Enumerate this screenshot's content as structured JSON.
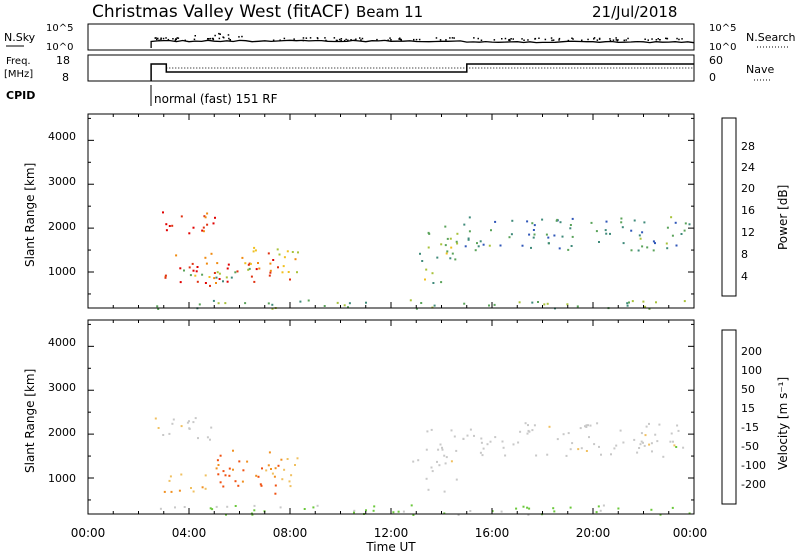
{
  "header": {
    "title": "Christmas Valley West (fitACF)",
    "beam": "Beam 11",
    "date": "21/Jul/2018"
  },
  "top_panels": {
    "nsky": {
      "label": "N.Sky",
      "ticks": [
        "10^5",
        "10^0"
      ],
      "right_label": "N.Search",
      "right_ticks": [
        "10^5",
        "10^0"
      ]
    },
    "freq": {
      "label_line1": "Freq.",
      "label_line2": "[MHz]",
      "ticks": [
        "18",
        "8"
      ],
      "right_label": "Nave",
      "right_ticks": [
        "60",
        "0"
      ]
    },
    "cpid": {
      "label": "CPID",
      "mode": "normal (fast) 151 RF"
    }
  },
  "power_panel": {
    "ylabel": "Slant Range [km]",
    "yticks": [
      "4000",
      "3000",
      "2000",
      "1000"
    ],
    "colorbar_label": "Power [dB]",
    "colorbar_ticks": [
      "28",
      "24",
      "20",
      "16",
      "12",
      "8",
      "4"
    ],
    "colors": [
      "#1a1ae0",
      "#2f56b8",
      "#3f8a7a",
      "#5aa35a",
      "#a8c23a",
      "#f0c020",
      "#f08a10",
      "#e03010",
      "#e00000"
    ]
  },
  "velocity_panel": {
    "ylabel": "Slant Range [km]",
    "yticks": [
      "4000",
      "3000",
      "2000",
      "1000"
    ],
    "colorbar_label": "Velocity [m s⁻¹]",
    "colorbar_ticks": [
      "200",
      "100",
      "50",
      "15",
      "-15",
      "-50",
      "-100",
      "-200"
    ],
    "colors": [
      "#2030c0",
      "#2f6fa0",
      "#3a9a6a",
      "#6ac83a",
      "#c8c8c8",
      "#f0c060",
      "#f09020",
      "#f05010",
      "#e00000"
    ]
  },
  "xaxis": {
    "label": "Time UT",
    "ticks": [
      "00:00",
      "04:00",
      "08:00",
      "12:00",
      "16:00",
      "20:00",
      "00:00"
    ]
  },
  "chart_data": {
    "type": "heatmap",
    "title": "Christmas Valley West (fitACF)",
    "xlabel": "Time UT",
    "ylabel": "Slant Range [km]",
    "xlim": [
      0,
      24
    ],
    "ylim": [
      180,
      4600
    ],
    "frequency_steps_MHz": [
      {
        "start": 2.5,
        "end": 3.1,
        "freq": 15
      },
      {
        "start": 3.1,
        "end": 15.0,
        "freq": 11
      },
      {
        "start": 15.0,
        "end": 24.0,
        "freq": 15
      }
    ],
    "series": [
      {
        "name": "Power",
        "regions": [
          {
            "t0": 2.5,
            "t1": 5.0,
            "r0": 1850,
            "r1": 2450,
            "v": 28
          },
          {
            "t0": 3.0,
            "t1": 8.2,
            "r0": 700,
            "r1": 1450,
            "v": 26
          },
          {
            "t0": 3.0,
            "t1": 6.0,
            "r0": 800,
            "r1": 1150,
            "v": 14
          },
          {
            "t0": 5.8,
            "t1": 8.3,
            "r0": 1000,
            "r1": 1600,
            "v": 18
          },
          {
            "t0": 13.3,
            "t1": 14.6,
            "r0": 700,
            "r1": 2200,
            "v": 14
          },
          {
            "t0": 14.8,
            "t1": 23.8,
            "r0": 1500,
            "r1": 2300,
            "v": 10
          },
          {
            "t0": 12.8,
            "t1": 14.0,
            "r0": 1250,
            "r1": 1450,
            "v": 8
          },
          {
            "t0": 2.5,
            "t1": 23.8,
            "r0": 180,
            "r1": 380,
            "v": 12
          }
        ]
      },
      {
        "name": "Velocity",
        "regions": [
          {
            "t0": 2.5,
            "t1": 5.0,
            "r0": 1850,
            "r1": 2450,
            "v": 0
          },
          {
            "t0": 3.0,
            "t1": 5.2,
            "r0": 700,
            "r1": 1150,
            "v": -60
          },
          {
            "t0": 5.0,
            "t1": 7.8,
            "r0": 650,
            "r1": 1650,
            "v": -150
          },
          {
            "t0": 6.8,
            "t1": 8.3,
            "r0": 800,
            "r1": 1500,
            "v": -60
          },
          {
            "t0": 13.3,
            "t1": 14.6,
            "r0": 700,
            "r1": 2200,
            "v": 0
          },
          {
            "t0": 14.8,
            "t1": 23.8,
            "r0": 1500,
            "r1": 2300,
            "v": 0
          },
          {
            "t0": 12.8,
            "t1": 13.9,
            "r0": 1250,
            "r1": 1450,
            "v": -30
          },
          {
            "t0": 2.5,
            "t1": 23.8,
            "r0": 180,
            "r1": 400,
            "v": 40
          }
        ]
      }
    ]
  }
}
